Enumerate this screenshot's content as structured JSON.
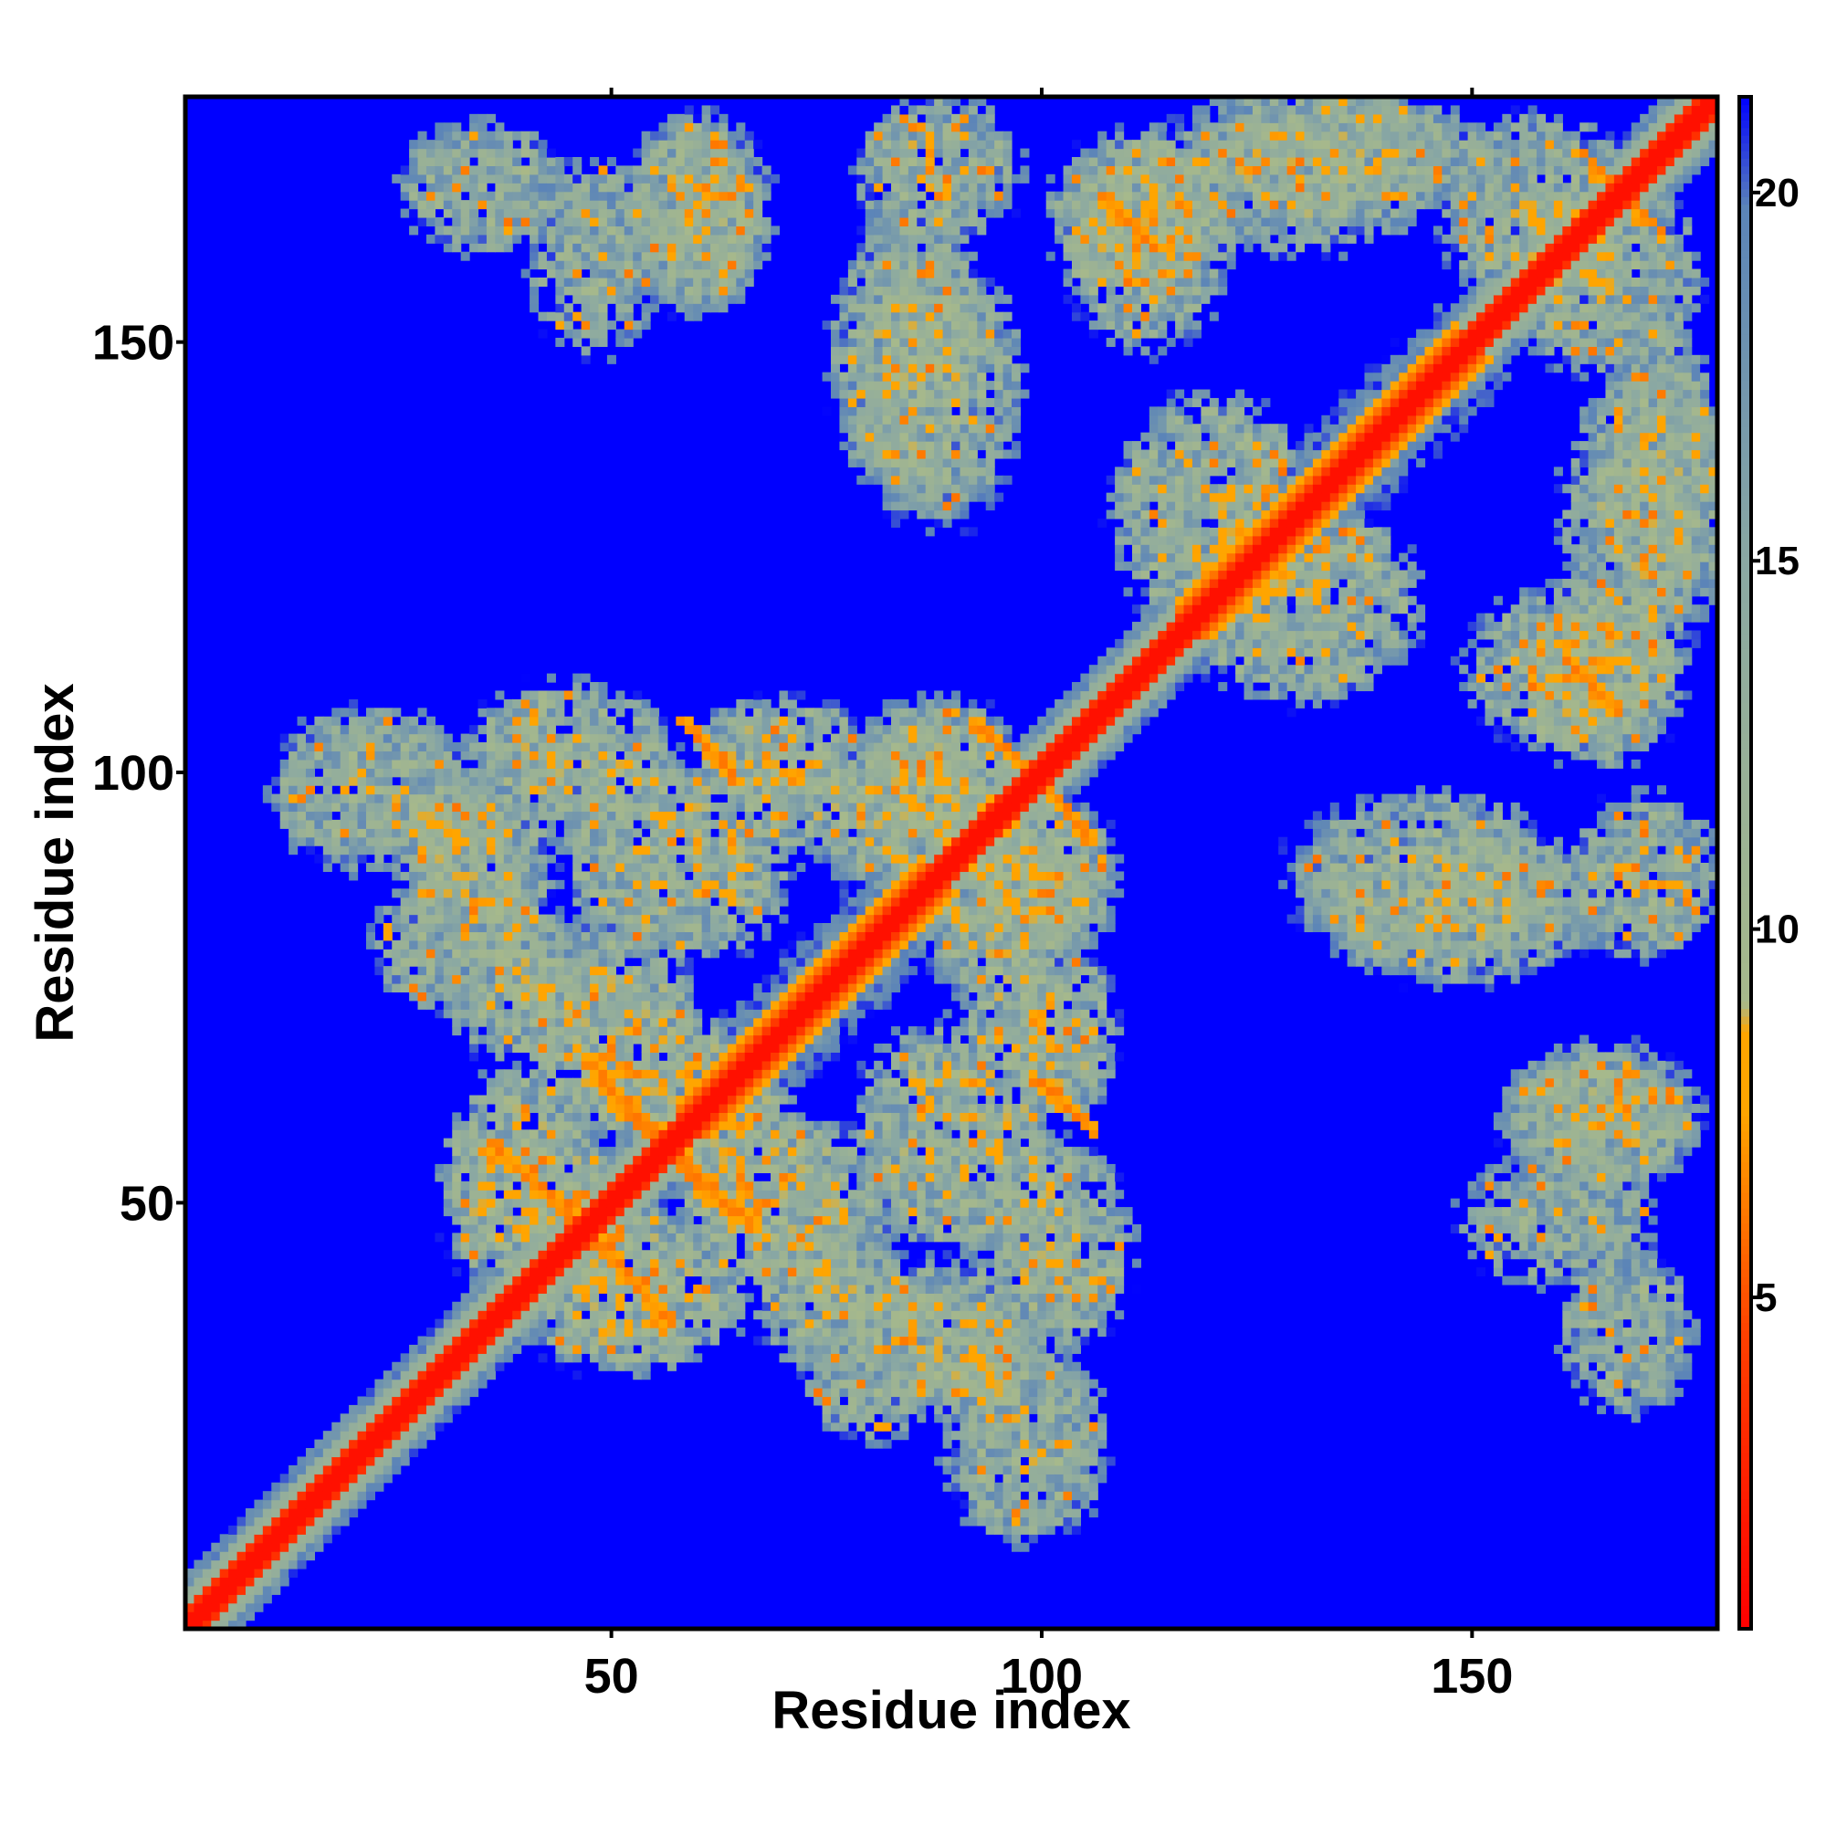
{
  "chart_data": {
    "type": "heatmap",
    "title": "",
    "xlabel": "Residue index",
    "ylabel": "Residue index",
    "n_residues": 178,
    "xlim": [
      1,
      178
    ],
    "ylim": [
      1,
      178
    ],
    "x_ticks": [
      50,
      100,
      150
    ],
    "y_ticks": [
      50,
      100,
      150
    ],
    "x_tick_labels": [
      "50",
      "100",
      "150"
    ],
    "y_tick_labels": [
      "50",
      "100",
      "150"
    ],
    "colorbar": {
      "range": [
        0.5,
        21.3
      ],
      "ticks": [
        5,
        10,
        15,
        20
      ],
      "tick_labels": [
        "5",
        "10",
        "15",
        "20"
      ],
      "stops": [
        {
          "value": 0.5,
          "color": "#ff0000"
        },
        {
          "value": 4.5,
          "color": "#ff4000"
        },
        {
          "value": 7.5,
          "color": "#ffa500"
        },
        {
          "value": 8.6,
          "color": "#ffa500"
        },
        {
          "value": 9.0,
          "color": "#a7b98b"
        },
        {
          "value": 15.0,
          "color": "#8aa8a3"
        },
        {
          "value": 19.8,
          "color": "#5b84b8"
        },
        {
          "value": 21.3,
          "color": "#0000ff"
        }
      ],
      "out_of_range_color": "#0000ff"
    },
    "matrix_description": "symmetric residue-residue distance map (angstrom); values above colorbar max shown blue",
    "diagonal_band": {
      "value_on_diagonal": 1.0,
      "near_diagonal_value": 5.0,
      "helix_segments": [
        [
          60,
          88
        ],
        [
          118,
          150
        ]
      ]
    },
    "contact_blobs": [
      {
        "center": [
          50,
          70
        ],
        "radius": [
          10,
          13
        ],
        "value": 12
      },
      {
        "center": [
          22,
          98
        ],
        "radius": [
          12,
          10
        ],
        "value": 13
      },
      {
        "center": [
          45,
          102
        ],
        "radius": [
          12,
          9
        ],
        "value": 12
      },
      {
        "center": [
          35,
          88
        ],
        "radius": [
          9,
          14
        ],
        "value": 13
      },
      {
        "center": [
          40,
          52
        ],
        "radius": [
          10,
          14
        ],
        "value": 12
      },
      {
        "center": [
          55,
          65
        ],
        "radius": [
          10,
          8
        ],
        "value": 11
      },
      {
        "center": [
          90,
          58
        ],
        "radius": [
          12,
          14
        ],
        "value": 12
      },
      {
        "center": [
          100,
          70
        ],
        "radius": [
          9,
          12
        ],
        "value": 12
      },
      {
        "center": [
          88,
          100
        ],
        "radius": [
          10,
          9
        ],
        "value": 12
      },
      {
        "center": [
          95,
          85
        ],
        "radius": [
          10,
          12
        ],
        "value": 12
      },
      {
        "center": [
          90,
          33
        ],
        "radius": [
          10,
          8
        ],
        "value": 13
      },
      {
        "center": [
          75,
          40
        ],
        "radius": [
          9,
          10
        ],
        "value": 13
      },
      {
        "center": [
          35,
          168
        ],
        "radius": [
          10,
          8
        ],
        "value": 13
      },
      {
        "center": [
          60,
          165
        ],
        "radius": [
          8,
          12
        ],
        "value": 13
      },
      {
        "center": [
          85,
          148
        ],
        "radius": [
          10,
          18
        ],
        "value": 13
      },
      {
        "center": [
          112,
          165
        ],
        "radius": [
          12,
          10
        ],
        "value": 13
      },
      {
        "center": [
          135,
          172
        ],
        "radius": [
          18,
          7
        ],
        "value": 13
      },
      {
        "center": [
          120,
          130
        ],
        "radius": [
          12,
          14
        ],
        "value": 12
      },
      {
        "center": [
          165,
          158
        ],
        "radius": [
          12,
          12
        ],
        "value": 13
      },
      {
        "center": [
          170,
          130
        ],
        "radius": [
          10,
          18
        ],
        "value": 13
      },
      {
        "center": [
          162,
          112
        ],
        "radius": [
          13,
          10
        ],
        "value": 12
      },
      {
        "center": [
          145,
          88
        ],
        "radius": [
          17,
          10
        ],
        "value": 13
      },
      {
        "center": [
          170,
          88
        ],
        "radius": [
          9,
          10
        ],
        "value": 13
      },
      {
        "center": [
          165,
          60
        ],
        "radius": [
          12,
          9
        ],
        "value": 13
      },
      {
        "center": [
          160,
          48
        ],
        "radius": [
          12,
          8
        ],
        "value": 14
      },
      {
        "center": [
          30,
          80
        ],
        "radius": [
          8,
          8
        ],
        "value": 14
      }
    ],
    "orange_streaks": [
      {
        "from": [
          35,
          56
        ],
        "to": [
          48,
          48
        ],
        "value": 6
      },
      {
        "from": [
          47,
          46
        ],
        "to": [
          57,
          36
        ],
        "value": 6
      },
      {
        "from": [
          47,
          66
        ],
        "to": [
          55,
          58
        ],
        "value": 6
      },
      {
        "from": [
          56,
          56
        ],
        "to": [
          64,
          48
        ],
        "value": 6
      },
      {
        "from": [
          59,
          106
        ],
        "to": [
          64,
          100
        ],
        "value": 6
      },
      {
        "from": [
          92,
          106
        ],
        "to": [
          100,
          99
        ],
        "value": 6
      },
      {
        "from": [
          100,
          99
        ],
        "to": [
          105,
          92
        ],
        "value": 6
      },
      {
        "from": [
          99,
          64
        ],
        "to": [
          106,
          58
        ],
        "value": 6
      },
      {
        "from": [
          107,
          167
        ],
        "to": [
          113,
          162
        ],
        "value": 6
      },
      {
        "from": [
          161,
          113
        ],
        "to": [
          166,
          107
        ],
        "value": 6
      },
      {
        "from": [
          163,
          172
        ],
        "to": [
          170,
          164
        ],
        "value": 6
      },
      {
        "from": [
          28,
          95
        ],
        "to": [
          33,
          92
        ],
        "value": 7
      }
    ]
  }
}
